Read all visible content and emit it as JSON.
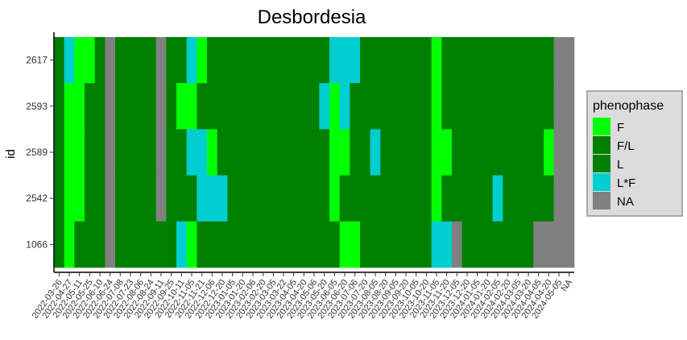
{
  "chart_data": {
    "type": "heatmap",
    "title": "Desbordesia",
    "xlabel": "",
    "ylabel": "id",
    "y_categories": [
      "2617",
      "2593",
      "2589",
      "2542",
      "1066"
    ],
    "x_categories": [
      "2022-03-26",
      "2022-04-27",
      "2022-05-11",
      "2022-05-25",
      "2022-06-10",
      "2022-06-24",
      "2022-07-08",
      "2022-07-23",
      "2022-08-06",
      "2022-08-24",
      "2022-09-11",
      "2022-09-25",
      "2022-10-11",
      "2022-11-05",
      "2022-11-21",
      "2022-12-06",
      "2022-12-20",
      "2023-01-05",
      "2023-01-20",
      "2023-02-06",
      "2023-02-20",
      "2023-03-05",
      "2023-03-22",
      "2023-04-05",
      "2023-04-20",
      "2023-05-06",
      "2023-05-20",
      "2023-06-05",
      "2023-06-20",
      "2023-07-06",
      "2023-07-20",
      "2023-08-05",
      "2023-08-20",
      "2023-09-05",
      "2023-09-20",
      "2023-10-05",
      "2023-10-20",
      "2023-11-05",
      "2023-11-20",
      "2023-12-05",
      "2023-12-20",
      "2024-01-05",
      "2024-01-20",
      "2024-02-05",
      "2024-02-20",
      "2024-03-05",
      "2024-03-20",
      "2024-04-05",
      "2024-04-20",
      "2024-05-05",
      "NA"
    ],
    "x_tick_labels_visible": "partially cut off at the bottom edge",
    "legend": {
      "title": "phenophase",
      "position": "right",
      "entries": [
        {
          "label": "F",
          "color": "#00FF00"
        },
        {
          "label": "F/L",
          "color": "#008000"
        },
        {
          "label": "L",
          "color": "#008000"
        },
        {
          "label": "L*F",
          "color": "#00CED1"
        },
        {
          "label": "NA",
          "color": "#808080"
        }
      ]
    },
    "grid": false,
    "rows": [
      {
        "id": "2617",
        "segments": [
          {
            "from": "2022-03-26",
            "to": "2022-04-27",
            "phase": "L"
          },
          {
            "from": "2022-04-27",
            "to": "2022-05-11",
            "phase": "L*F"
          },
          {
            "from": "2022-05-11",
            "to": "2022-06-10",
            "phase": "F"
          },
          {
            "from": "2022-06-10",
            "to": "2022-06-24",
            "phase": "L"
          },
          {
            "from": "2022-06-24",
            "to": "2022-07-08",
            "phase": "NA"
          },
          {
            "from": "2022-07-08",
            "to": "2022-09-11",
            "phase": "L"
          },
          {
            "from": "2022-09-11",
            "to": "2022-09-25",
            "phase": "NA"
          },
          {
            "from": "2022-09-25",
            "to": "2022-11-05",
            "phase": "L"
          },
          {
            "from": "2022-11-05",
            "to": "2022-11-21",
            "phase": "L*F"
          },
          {
            "from": "2022-11-21",
            "to": "2022-12-06",
            "phase": "F"
          },
          {
            "from": "2022-12-06",
            "to": "2023-06-05",
            "phase": "L"
          },
          {
            "from": "2023-06-05",
            "to": "2023-07-20",
            "phase": "L*F"
          },
          {
            "from": "2023-07-20",
            "to": "2023-11-05",
            "phase": "L"
          },
          {
            "from": "2023-11-05",
            "to": "2023-11-20",
            "phase": "F"
          },
          {
            "from": "2023-11-20",
            "to": "2024-05-05",
            "phase": "L"
          },
          {
            "from": "2024-05-05",
            "to": "NA",
            "phase": "NA"
          }
        ]
      },
      {
        "id": "2593",
        "segments": [
          {
            "from": "2022-03-26",
            "to": "2022-04-27",
            "phase": "L"
          },
          {
            "from": "2022-04-27",
            "to": "2022-05-25",
            "phase": "F"
          },
          {
            "from": "2022-05-25",
            "to": "2022-06-24",
            "phase": "L"
          },
          {
            "from": "2022-06-24",
            "to": "2022-07-08",
            "phase": "NA"
          },
          {
            "from": "2022-07-08",
            "to": "2022-09-11",
            "phase": "L"
          },
          {
            "from": "2022-09-11",
            "to": "2022-09-25",
            "phase": "NA"
          },
          {
            "from": "2022-09-25",
            "to": "2022-10-11",
            "phase": "L"
          },
          {
            "from": "2022-10-11",
            "to": "2022-11-21",
            "phase": "F"
          },
          {
            "from": "2022-11-21",
            "to": "2023-05-20",
            "phase": "L"
          },
          {
            "from": "2023-05-20",
            "to": "2023-06-05",
            "phase": "L*F"
          },
          {
            "from": "2023-06-05",
            "to": "2023-06-20",
            "phase": "F"
          },
          {
            "from": "2023-06-20",
            "to": "2023-07-06",
            "phase": "L*F"
          },
          {
            "from": "2023-07-06",
            "to": "2023-11-05",
            "phase": "L"
          },
          {
            "from": "2023-11-05",
            "to": "2023-11-20",
            "phase": "F"
          },
          {
            "from": "2023-11-20",
            "to": "2024-05-05",
            "phase": "L"
          },
          {
            "from": "2024-05-05",
            "to": "NA",
            "phase": "NA"
          }
        ]
      },
      {
        "id": "2589",
        "segments": [
          {
            "from": "2022-03-26",
            "to": "2022-04-27",
            "phase": "L"
          },
          {
            "from": "2022-04-27",
            "to": "2022-05-25",
            "phase": "F"
          },
          {
            "from": "2022-05-25",
            "to": "2022-06-24",
            "phase": "L"
          },
          {
            "from": "2022-06-24",
            "to": "2022-07-08",
            "phase": "NA"
          },
          {
            "from": "2022-07-08",
            "to": "2022-09-11",
            "phase": "L"
          },
          {
            "from": "2022-09-11",
            "to": "2022-09-25",
            "phase": "NA"
          },
          {
            "from": "2022-09-25",
            "to": "2022-11-05",
            "phase": "L"
          },
          {
            "from": "2022-11-05",
            "to": "2022-12-06",
            "phase": "L*F"
          },
          {
            "from": "2022-12-06",
            "to": "2022-12-20",
            "phase": "F"
          },
          {
            "from": "2022-12-20",
            "to": "2023-06-05",
            "phase": "L"
          },
          {
            "from": "2023-06-05",
            "to": "2023-07-06",
            "phase": "F"
          },
          {
            "from": "2023-07-06",
            "to": "2023-08-05",
            "phase": "L"
          },
          {
            "from": "2023-08-05",
            "to": "2023-08-20",
            "phase": "L*F"
          },
          {
            "from": "2023-08-20",
            "to": "2023-11-05",
            "phase": "L"
          },
          {
            "from": "2023-11-05",
            "to": "2023-12-05",
            "phase": "F"
          },
          {
            "from": "2023-12-05",
            "to": "2024-04-20",
            "phase": "L"
          },
          {
            "from": "2024-04-20",
            "to": "2024-05-05",
            "phase": "F"
          },
          {
            "from": "2024-05-05",
            "to": "NA",
            "phase": "NA"
          }
        ]
      },
      {
        "id": "2542",
        "segments": [
          {
            "from": "2022-03-26",
            "to": "2022-04-27",
            "phase": "L"
          },
          {
            "from": "2022-04-27",
            "to": "2022-05-25",
            "phase": "F"
          },
          {
            "from": "2022-05-25",
            "to": "2022-06-24",
            "phase": "L"
          },
          {
            "from": "2022-06-24",
            "to": "2022-07-08",
            "phase": "NA"
          },
          {
            "from": "2022-07-08",
            "to": "2022-09-11",
            "phase": "L"
          },
          {
            "from": "2022-09-11",
            "to": "2022-09-25",
            "phase": "NA"
          },
          {
            "from": "2022-09-25",
            "to": "2022-11-21",
            "phase": "L"
          },
          {
            "from": "2022-11-21",
            "to": "2023-01-05",
            "phase": "L*F"
          },
          {
            "from": "2023-01-05",
            "to": "2023-06-05",
            "phase": "L"
          },
          {
            "from": "2023-06-05",
            "to": "2023-06-20",
            "phase": "F"
          },
          {
            "from": "2023-06-20",
            "to": "2023-11-05",
            "phase": "L"
          },
          {
            "from": "2023-11-05",
            "to": "2023-11-20",
            "phase": "F"
          },
          {
            "from": "2023-11-20",
            "to": "2024-02-05",
            "phase": "L"
          },
          {
            "from": "2024-02-05",
            "to": "2024-02-20",
            "phase": "L*F"
          },
          {
            "from": "2024-02-20",
            "to": "2024-05-05",
            "phase": "L"
          },
          {
            "from": "2024-05-05",
            "to": "NA",
            "phase": "NA"
          }
        ]
      },
      {
        "id": "1066",
        "segments": [
          {
            "from": "2022-03-26",
            "to": "2022-04-27",
            "phase": "L"
          },
          {
            "from": "2022-04-27",
            "to": "2022-05-11",
            "phase": "F"
          },
          {
            "from": "2022-05-11",
            "to": "2022-06-24",
            "phase": "L"
          },
          {
            "from": "2022-06-24",
            "to": "2022-07-08",
            "phase": "NA"
          },
          {
            "from": "2022-07-08",
            "to": "2022-10-11",
            "phase": "L"
          },
          {
            "from": "2022-10-11",
            "to": "2022-11-05",
            "phase": "L*F"
          },
          {
            "from": "2022-11-05",
            "to": "2022-11-21",
            "phase": "F"
          },
          {
            "from": "2022-11-21",
            "to": "2023-06-20",
            "phase": "L"
          },
          {
            "from": "2023-06-20",
            "to": "2023-07-20",
            "phase": "F"
          },
          {
            "from": "2023-07-20",
            "to": "2023-11-05",
            "phase": "L"
          },
          {
            "from": "2023-11-05",
            "to": "2023-12-05",
            "phase": "L*F"
          },
          {
            "from": "2023-12-05",
            "to": "2023-12-20",
            "phase": "NA"
          },
          {
            "from": "2023-12-20",
            "to": "2024-04-05",
            "phase": "L"
          },
          {
            "from": "2024-04-05",
            "to": "NA",
            "phase": "NA"
          }
        ]
      }
    ]
  }
}
